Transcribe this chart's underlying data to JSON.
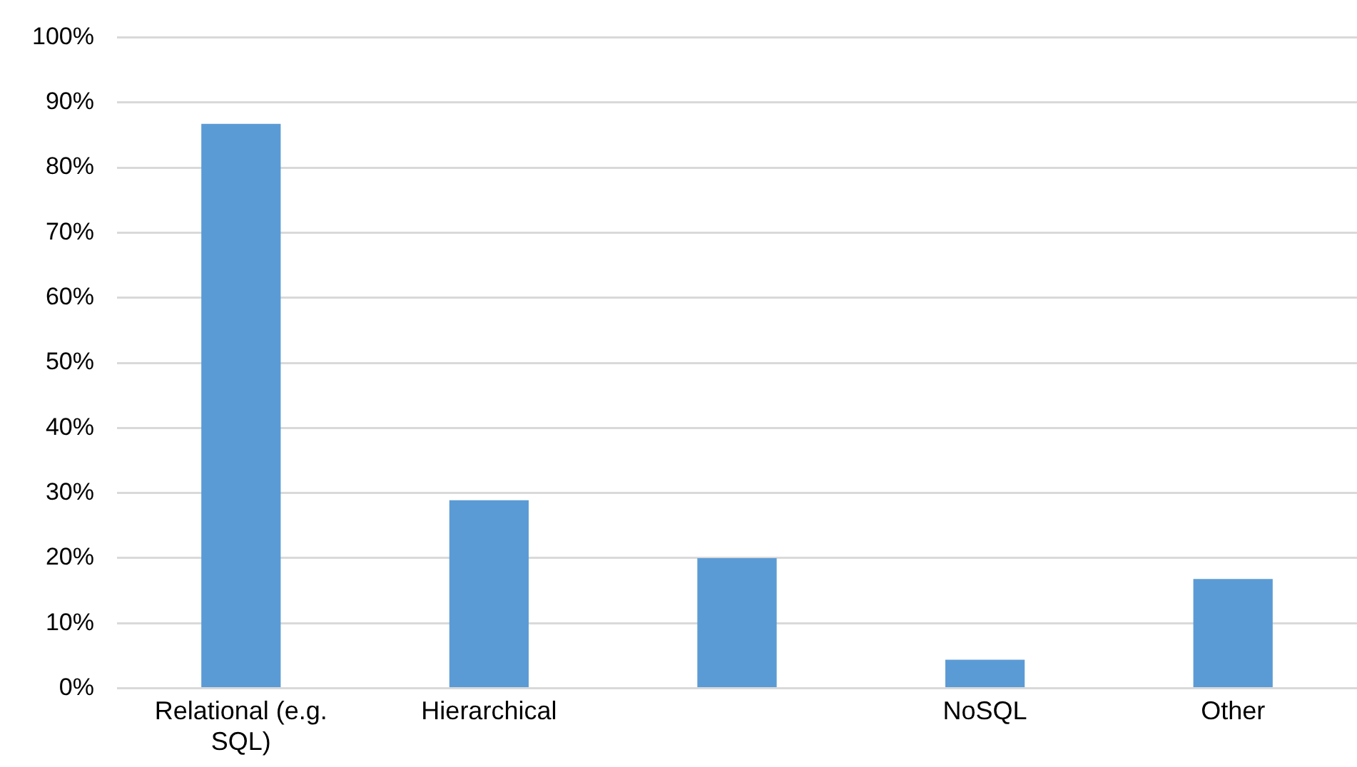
{
  "chart_data": {
    "type": "bar",
    "categories": [
      "Relational (e.g. SQL)",
      "Hierarchical",
      null,
      "NoSQL",
      "Other"
    ],
    "values": [
      86.7,
      28.9,
      20,
      4.4,
      16.8
    ],
    "color": "#5b9bd5",
    "ylim": [
      0,
      100
    ],
    "yticks": [
      {
        "value": 0,
        "label": "0%"
      },
      {
        "value": 10,
        "label": "10%"
      },
      {
        "value": 20,
        "label": "20%"
      },
      {
        "value": 30,
        "label": "30%"
      },
      {
        "value": 40,
        "label": "40%"
      },
      {
        "value": 50,
        "label": "50%"
      },
      {
        "value": 60,
        "label": "60%"
      },
      {
        "value": 70,
        "label": "70%"
      },
      {
        "value": 80,
        "label": "80%"
      },
      {
        "value": 90,
        "label": "90%"
      },
      {
        "value": 100,
        "label": "100%"
      }
    ],
    "grid": "y",
    "legend": false
  }
}
